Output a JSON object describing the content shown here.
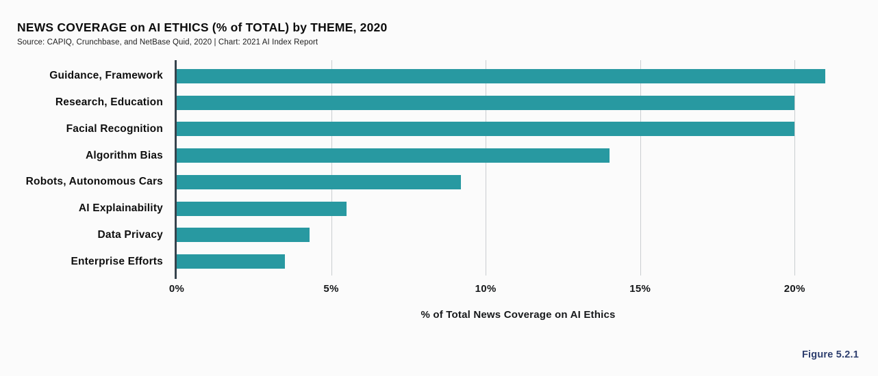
{
  "header": {
    "title": "NEWS COVERAGE on AI ETHICS (% of TOTAL) by THEME, 2020",
    "source": "Source: CAPIQ, Crunchbase, and NetBase Quid, 2020 | Chart: 2021 AI Index Report"
  },
  "chart_data": {
    "type": "bar",
    "orientation": "horizontal",
    "title": "NEWS COVERAGE on AI ETHICS (% of TOTAL) by THEME, 2020",
    "categories": [
      "Guidance, Framework",
      "Research, Education",
      "Facial Recognition",
      "Algorithm Bias",
      "Robots, Autonomous Cars",
      "AI Explainability",
      "Data Privacy",
      "Enterprise Efforts"
    ],
    "values": [
      21,
      20,
      20,
      14,
      9.2,
      5.5,
      4.3,
      3.5
    ],
    "xlabel": "% of Total News Coverage on AI Ethics",
    "ylabel": "",
    "xlim": [
      0,
      22.1
    ],
    "xtick_values": [
      0,
      5,
      10,
      15,
      20
    ],
    "xtick_labels": [
      "0%",
      "5%",
      "10%",
      "15%",
      "20%"
    ],
    "grid": "vertical-gridlines-at-ticks",
    "legend": "none",
    "bar_color": "#2899a1",
    "axis_color": "#36434d",
    "grid_color": "#c9cdd0",
    "background_color": "#fbfbfb"
  },
  "footer": {
    "figure_label": "Figure 5.2.1",
    "figure_label_color": "#2d3e6e"
  }
}
